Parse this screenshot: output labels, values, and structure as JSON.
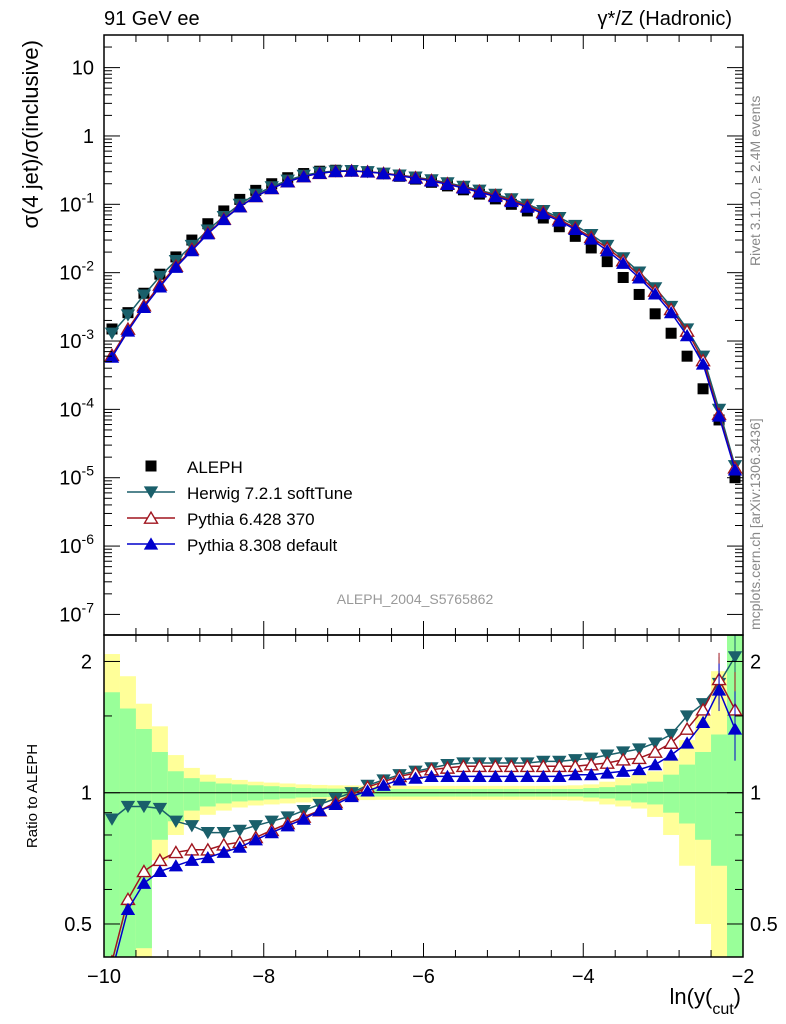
{
  "header": {
    "left": "91 GeV ee",
    "right": "γ*/Z (Hadronic)"
  },
  "side_labels": {
    "rivet": "Rivet 3.1.10, ≥ 2.4M events",
    "mcplots": "mcplots.cern.ch [arXiv:1306.3436]"
  },
  "chart_data": [
    {
      "type": "scatter",
      "panel": "main",
      "ylabel": "σ(4 jet)/σ(inclusive)",
      "xlabel": "ln(y_cut)",
      "xlim": [
        -10.0,
        -2.0
      ],
      "ylim": [
        5e-08,
        30
      ],
      "yscale": "log",
      "watermark": "ALEPH_2004_S5765862",
      "legend_position": "bottom-left",
      "x": [
        -9.9,
        -9.7,
        -9.5,
        -9.3,
        -9.1,
        -8.9,
        -8.7,
        -8.5,
        -8.3,
        -8.1,
        -7.9,
        -7.7,
        -7.5,
        -7.3,
        -7.1,
        -6.9,
        -6.7,
        -6.5,
        -6.3,
        -6.1,
        -5.9,
        -5.7,
        -5.5,
        -5.3,
        -5.1,
        -4.9,
        -4.7,
        -4.5,
        -4.3,
        -4.1,
        -3.9,
        -3.7,
        -3.5,
        -3.3,
        -3.1,
        -2.9,
        -2.7,
        -2.5,
        -2.3,
        -2.1
      ],
      "series": [
        {
          "name": "ALEPH",
          "color": "#000000",
          "marker": "square",
          "values": [
            0.0015,
            0.0026,
            0.005,
            0.0095,
            0.017,
            0.03,
            0.052,
            0.08,
            0.118,
            0.16,
            0.2,
            0.245,
            0.282,
            0.305,
            0.315,
            0.31,
            0.298,
            0.28,
            0.257,
            0.234,
            0.21,
            0.186,
            0.163,
            0.141,
            0.12,
            0.1,
            0.08,
            0.063,
            0.047,
            0.034,
            0.023,
            0.0145,
            0.0085,
            0.0048,
            0.0025,
            0.0013,
            0.0006,
            0.0002,
            7e-05,
            1e-05
          ]
        },
        {
          "name": "Herwig 7.2.1 softTune",
          "color": "#1a5f6a",
          "marker": "triangle-down",
          "values": [
            0.0013,
            0.0024,
            0.0047,
            0.0088,
            0.015,
            0.025,
            0.042,
            0.066,
            0.1,
            0.14,
            0.18,
            0.225,
            0.265,
            0.293,
            0.307,
            0.311,
            0.3,
            0.285,
            0.268,
            0.25,
            0.228,
            0.206,
            0.183,
            0.161,
            0.14,
            0.12,
            0.1,
            0.081,
            0.064,
            0.049,
            0.036,
            0.025,
            0.0165,
            0.0102,
            0.006,
            0.0032,
            0.0015,
            0.0006,
            0.0001,
            1.5e-05
          ]
        },
        {
          "name": "Pythia 6.428 370",
          "color": "#a0151f",
          "marker": "triangle-up-open",
          "values": [
            0.00062,
            0.0015,
            0.0033,
            0.0066,
            0.0125,
            0.022,
            0.038,
            0.061,
            0.093,
            0.131,
            0.171,
            0.215,
            0.255,
            0.285,
            0.303,
            0.309,
            0.3,
            0.284,
            0.266,
            0.246,
            0.224,
            0.201,
            0.178,
            0.156,
            0.135,
            0.115,
            0.095,
            0.077,
            0.06,
            0.045,
            0.033,
            0.023,
            0.015,
            0.0092,
            0.0054,
            0.0029,
            0.0014,
            0.00052,
            8.5e-05,
            1.4e-05
          ]
        },
        {
          "name": "Pythia 8.308 default",
          "color": "#0000cc",
          "marker": "triangle-up",
          "values": [
            0.00058,
            0.0014,
            0.0031,
            0.0062,
            0.012,
            0.021,
            0.037,
            0.06,
            0.092,
            0.13,
            0.17,
            0.214,
            0.254,
            0.284,
            0.302,
            0.307,
            0.298,
            0.281,
            0.262,
            0.241,
            0.219,
            0.196,
            0.173,
            0.151,
            0.13,
            0.11,
            0.091,
            0.073,
            0.057,
            0.043,
            0.031,
            0.021,
            0.0137,
            0.0084,
            0.0049,
            0.0026,
            0.0012,
            0.00046,
            8e-05,
            1.3e-05
          ]
        }
      ]
    },
    {
      "type": "line",
      "panel": "ratio",
      "ylabel": "Ratio to ALEPH",
      "xlabel": "ln(y_cut)",
      "xlim": [
        -10.0,
        -2.0
      ],
      "ylim": [
        0.42,
        2.3
      ],
      "yscale": "log",
      "x": [
        -9.9,
        -9.7,
        -9.5,
        -9.3,
        -9.1,
        -8.9,
        -8.7,
        -8.5,
        -8.3,
        -8.1,
        -7.9,
        -7.7,
        -7.5,
        -7.3,
        -7.1,
        -6.9,
        -6.7,
        -6.5,
        -6.3,
        -6.1,
        -5.9,
        -5.7,
        -5.5,
        -5.3,
        -5.1,
        -4.9,
        -4.7,
        -4.5,
        -4.3,
        -4.1,
        -3.9,
        -3.7,
        -3.5,
        -3.3,
        -3.1,
        -2.9,
        -2.7,
        -2.5,
        -2.3,
        -2.1
      ],
      "bands": {
        "inner_color": "#99ff99",
        "outer_color": "#ffff99",
        "inner_lo": [
          0.42,
          0.42,
          0.44,
          0.78,
          0.86,
          0.91,
          0.93,
          0.945,
          0.955,
          0.96,
          0.965,
          0.97,
          0.975,
          0.977,
          0.978,
          0.979,
          0.98,
          0.98,
          0.98,
          0.98,
          0.98,
          0.98,
          0.98,
          0.98,
          0.98,
          0.98,
          0.98,
          0.98,
          0.98,
          0.98,
          0.975,
          0.97,
          0.96,
          0.95,
          0.94,
          0.9,
          0.85,
          0.78,
          0.68,
          0.42
        ],
        "inner_hi": [
          1.7,
          1.56,
          1.4,
          1.24,
          1.12,
          1.08,
          1.06,
          1.05,
          1.045,
          1.04,
          1.035,
          1.03,
          1.025,
          1.023,
          1.022,
          1.021,
          1.02,
          1.02,
          1.02,
          1.02,
          1.02,
          1.02,
          1.02,
          1.02,
          1.02,
          1.02,
          1.02,
          1.02,
          1.02,
          1.02,
          1.025,
          1.03,
          1.04,
          1.05,
          1.06,
          1.1,
          1.16,
          1.24,
          1.36,
          2.3
        ],
        "outer_lo": [
          0.42,
          0.42,
          0.42,
          0.7,
          0.8,
          0.86,
          0.89,
          0.91,
          0.925,
          0.935,
          0.94,
          0.945,
          0.95,
          0.955,
          0.958,
          0.96,
          0.962,
          0.963,
          0.963,
          0.963,
          0.963,
          0.963,
          0.963,
          0.963,
          0.963,
          0.963,
          0.963,
          0.963,
          0.962,
          0.96,
          0.955,
          0.94,
          0.93,
          0.92,
          0.88,
          0.8,
          0.68,
          0.5,
          0.42,
          0.42
        ],
        "outer_hi": [
          2.08,
          1.85,
          1.6,
          1.42,
          1.22,
          1.14,
          1.1,
          1.08,
          1.07,
          1.06,
          1.055,
          1.05,
          1.045,
          1.042,
          1.04,
          1.039,
          1.038,
          1.037,
          1.037,
          1.037,
          1.037,
          1.037,
          1.037,
          1.037,
          1.037,
          1.037,
          1.037,
          1.037,
          1.038,
          1.04,
          1.045,
          1.06,
          1.08,
          1.1,
          1.12,
          1.2,
          1.32,
          1.5,
          1.9,
          2.3
        ]
      },
      "reference_line": 1,
      "series": [
        {
          "name": "Herwig 7.2.1 softTune",
          "color": "#1a5f6a",
          "marker": "triangle-down",
          "values": [
            0.87,
            0.93,
            0.93,
            0.92,
            0.86,
            0.84,
            0.81,
            0.81,
            0.82,
            0.84,
            0.86,
            0.88,
            0.91,
            0.94,
            0.97,
            1.0,
            1.04,
            1.07,
            1.1,
            1.12,
            1.14,
            1.16,
            1.17,
            1.17,
            1.17,
            1.17,
            1.17,
            1.18,
            1.18,
            1.19,
            1.2,
            1.22,
            1.24,
            1.26,
            1.3,
            1.36,
            1.5,
            1.6,
            1.78,
            2.05
          ]
        },
        {
          "name": "Pythia 6.428 370",
          "color": "#a0151f",
          "marker": "triangle-up-open",
          "values": [
            0.41,
            0.57,
            0.66,
            0.7,
            0.73,
            0.74,
            0.74,
            0.76,
            0.77,
            0.79,
            0.82,
            0.85,
            0.88,
            0.91,
            0.95,
            0.99,
            1.03,
            1.06,
            1.09,
            1.11,
            1.13,
            1.14,
            1.15,
            1.15,
            1.15,
            1.15,
            1.15,
            1.15,
            1.15,
            1.15,
            1.16,
            1.17,
            1.19,
            1.2,
            1.24,
            1.3,
            1.4,
            1.55,
            1.82,
            1.55
          ]
        },
        {
          "name": "Pythia 8.308 default",
          "color": "#0000cc",
          "marker": "triangle-up",
          "values": [
            0.39,
            0.54,
            0.62,
            0.66,
            0.68,
            0.7,
            0.71,
            0.73,
            0.75,
            0.78,
            0.81,
            0.84,
            0.87,
            0.91,
            0.94,
            0.98,
            1.01,
            1.04,
            1.07,
            1.08,
            1.09,
            1.09,
            1.09,
            1.09,
            1.09,
            1.09,
            1.09,
            1.09,
            1.09,
            1.1,
            1.1,
            1.11,
            1.12,
            1.13,
            1.16,
            1.22,
            1.3,
            1.45,
            1.72,
            1.4
          ]
        }
      ]
    }
  ],
  "axis_labels": {
    "main_y_ticks": [
      "10^{-7}",
      "10^{-6}",
      "10^{-5}",
      "10^{-4}",
      "10^{-3}",
      "10^{-2}",
      "10^{-1}",
      "1",
      "10"
    ],
    "ratio_y_ticks": [
      "0.5",
      "1",
      "2"
    ],
    "x_ticks": [
      "−10",
      "−8",
      "−6",
      "−4",
      "−2"
    ]
  }
}
